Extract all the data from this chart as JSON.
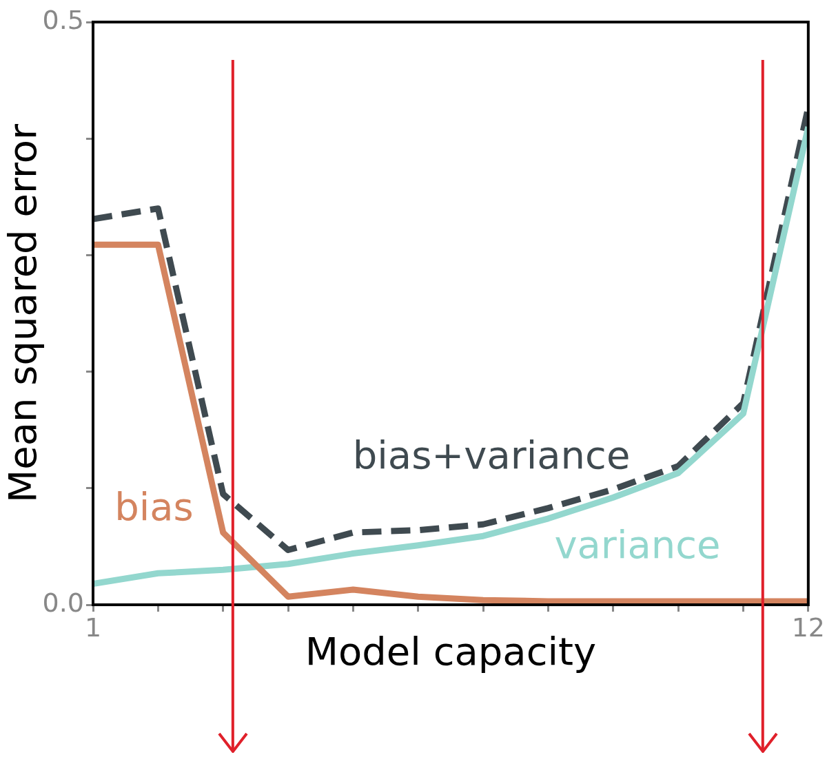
{
  "chart_data": {
    "type": "line",
    "xlabel": "Model capacity",
    "ylabel": "Mean squared error",
    "x": [
      1,
      2,
      3,
      4,
      5,
      6,
      7,
      8,
      9,
      10,
      11,
      12
    ],
    "series": [
      {
        "name": "bias",
        "color": "#d4845f",
        "line_style": "solid",
        "values": [
          0.309,
          0.309,
          0.062,
          0.007,
          0.013,
          0.007,
          0.004,
          0.003,
          0.003,
          0.003,
          0.003,
          0.003
        ]
      },
      {
        "name": "variance",
        "color": "#93d7ce",
        "line_style": "solid",
        "values": [
          0.018,
          0.027,
          0.03,
          0.035,
          0.044,
          0.051,
          0.059,
          0.074,
          0.092,
          0.113,
          0.164,
          0.41
        ]
      },
      {
        "name": "bias+variance",
        "color": "#3f4a50",
        "line_style": "dashed",
        "values": [
          0.331,
          0.34,
          0.095,
          0.047,
          0.062,
          0.064,
          0.069,
          0.083,
          0.099,
          0.119,
          0.173,
          0.427
        ]
      }
    ],
    "xlim": [
      1,
      12
    ],
    "xticks": [
      1,
      {
        "value": 2,
        "label": null
      },
      {
        "value": 3,
        "label": null
      },
      {
        "value": 4,
        "label": null
      },
      {
        "value": 5,
        "label": null
      },
      {
        "value": 6,
        "label": null
      },
      {
        "value": 7,
        "label": null
      },
      {
        "value": 8,
        "label": null
      },
      {
        "value": 9,
        "label": null
      },
      {
        "value": 10,
        "label": null
      },
      {
        "value": 11,
        "label": null
      },
      12
    ],
    "ylim": [
      0,
      0.5
    ],
    "yticks": [
      {
        "value": 0,
        "label": "0.0"
      },
      {
        "value": 0.1,
        "label": null
      },
      {
        "value": 0.2,
        "label": null
      },
      {
        "value": 0.3,
        "label": null
      },
      {
        "value": 0.4,
        "label": null
      },
      {
        "value": 0.5,
        "label": "0.5"
      }
    ],
    "ref_lines": [
      {
        "axis": "x",
        "value": 3.15,
        "color": "#e0202a"
      },
      {
        "axis": "x",
        "value": 11.3,
        "color": "#e0202a"
      }
    ],
    "grid": false,
    "legend": false,
    "marker": "none"
  }
}
